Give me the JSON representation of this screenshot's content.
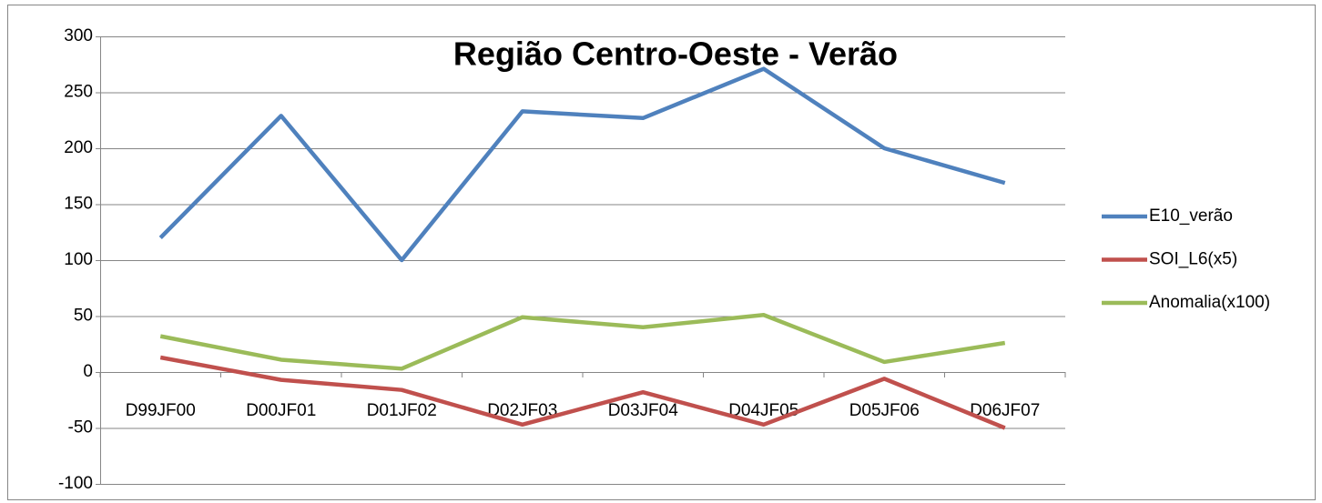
{
  "chart_data": {
    "type": "line",
    "title": "Região Centro-Oeste - Verão",
    "categories": [
      "D99JF00",
      "D00JF01",
      "D01JF02",
      "D02JF03",
      "D03JF04",
      "D04JF05",
      "D05JF06",
      "D06JF07"
    ],
    "series": [
      {
        "name": "E10_verão",
        "color": "#4f81bd",
        "values": [
          120,
          229,
          100,
          233,
          227,
          271,
          200,
          169
        ]
      },
      {
        "name": "SOI_L6(x5)",
        "color": "#c0504d",
        "values": [
          13,
          -7,
          -16,
          -47,
          -18,
          -47,
          -6,
          -50
        ]
      },
      {
        "name": "Anomalia(x100)",
        "color": "#9bbb59",
        "values": [
          32,
          11,
          3,
          49,
          40,
          51,
          9,
          26
        ]
      }
    ],
    "ylim": [
      -100,
      300
    ],
    "yticks": [
      -100,
      -50,
      0,
      50,
      100,
      150,
      200,
      250,
      300
    ],
    "grid": true,
    "legend": "right"
  }
}
